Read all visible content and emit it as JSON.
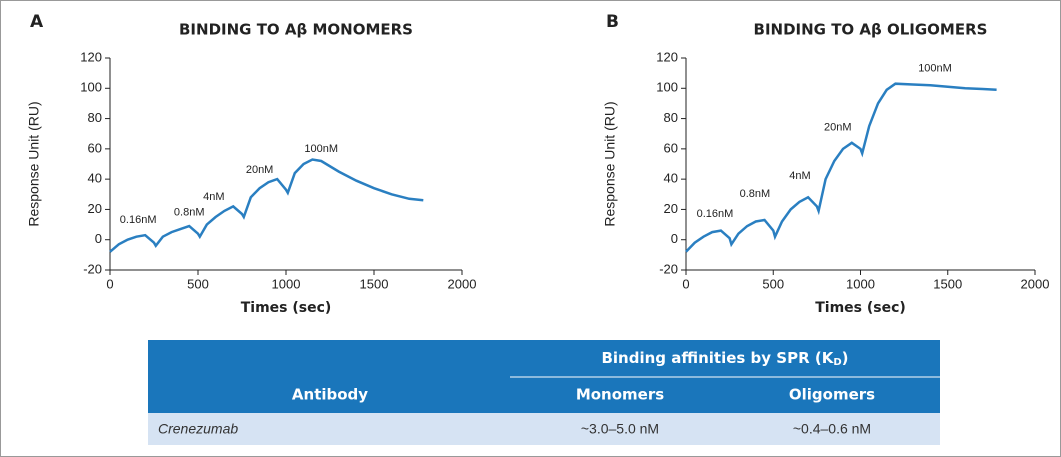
{
  "chart_data": [
    {
      "type": "line",
      "panel": "A",
      "title": "BINDING TO Aβ MONOMERS",
      "xlabel": "Times (sec)",
      "ylabel": "Response Unit (RU)",
      "color": "#2a7fc1",
      "x": [
        0,
        50,
        100,
        150,
        200,
        250,
        260,
        300,
        350,
        400,
        450,
        500,
        510,
        550,
        600,
        650,
        700,
        750,
        760,
        800,
        850,
        900,
        950,
        1000,
        1010,
        1050,
        1100,
        1150,
        1200,
        1300,
        1400,
        1500,
        1600,
        1700,
        1780
      ],
      "series": [
        {
          "color": "#2a7fc1",
          "values": [
            -8,
            -3,
            0,
            2,
            3,
            -2,
            -4,
            2,
            5,
            7,
            9,
            4,
            2,
            10,
            15,
            19,
            22,
            17,
            15,
            28,
            34,
            38,
            40,
            33,
            31,
            44,
            50,
            53,
            52,
            45,
            39,
            34,
            30,
            27,
            26
          ]
        }
      ],
      "annotations": [
        "0.16nM",
        "0.8nM",
        "4nM",
        "20nM",
        "100nM"
      ],
      "xlim": [
        0,
        2000
      ],
      "xticks": [
        0,
        500,
        1000,
        1500,
        2000
      ],
      "ylim": [
        -20,
        120
      ],
      "yticks": [
        -20,
        0,
        20,
        40,
        60,
        80,
        100,
        120
      ]
    },
    {
      "type": "line",
      "panel": "B",
      "title": "BINDING TO Aβ OLIGOMERS",
      "xlabel": "Times (sec)",
      "ylabel": "Response Unit (RU)",
      "color": "#2a7fc1",
      "x": [
        0,
        50,
        100,
        150,
        200,
        250,
        260,
        300,
        350,
        400,
        450,
        500,
        510,
        550,
        600,
        650,
        700,
        750,
        760,
        800,
        850,
        900,
        950,
        1000,
        1010,
        1050,
        1100,
        1150,
        1200,
        1300,
        1400,
        1500,
        1600,
        1700,
        1780
      ],
      "series": [
        {
          "color": "#2a7fc1",
          "values": [
            -8,
            -2,
            2,
            5,
            6,
            1,
            -3,
            4,
            9,
            12,
            13,
            6,
            2,
            12,
            20,
            25,
            28,
            22,
            19,
            40,
            52,
            60,
            64,
            60,
            57,
            75,
            90,
            99,
            103,
            102.5,
            102,
            101,
            100,
            99.5,
            99
          ]
        }
      ],
      "annotations": [
        "0.16nM",
        "0.8nM",
        "4nM",
        "20nM",
        "100nM"
      ],
      "xlim": [
        0,
        2000
      ],
      "xticks": [
        0,
        500,
        1000,
        1500,
        2000
      ],
      "ylim": [
        -20,
        120
      ],
      "yticks": [
        -20,
        0,
        20,
        40,
        60,
        80,
        100,
        120
      ]
    }
  ],
  "table": {
    "group_header": {
      "text": "Binding affinities by SPR (K",
      "sub": "D",
      "tail": ")"
    },
    "columns": [
      "Antibody",
      "Monomers",
      "Oligomers"
    ],
    "rows": [
      [
        "Crenezumab",
        "~3.0–5.0 nM",
        "~0.4–0.6 nM"
      ]
    ]
  }
}
